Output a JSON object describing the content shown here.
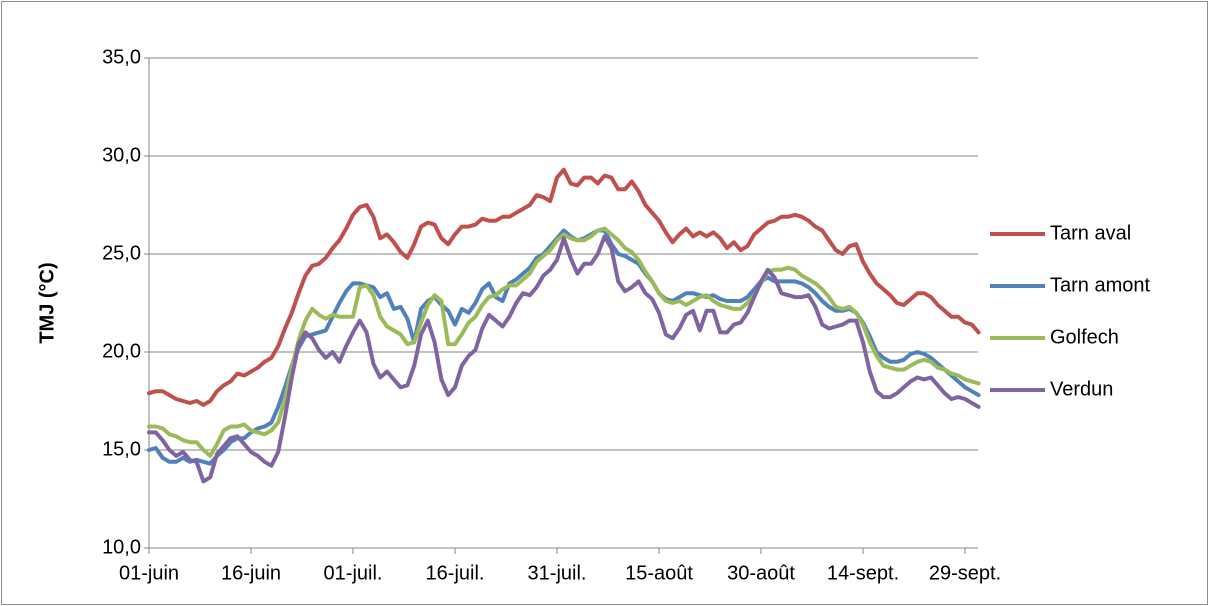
{
  "chart_data": {
    "type": "line",
    "y_label": "TMJ (°C)",
    "categories": [
      "01-juin",
      null,
      null,
      null,
      null,
      null,
      null,
      null,
      null,
      null,
      null,
      null,
      null,
      null,
      null,
      "16-juin",
      null,
      null,
      null,
      null,
      null,
      null,
      null,
      null,
      null,
      null,
      null,
      null,
      null,
      null,
      "01-juil.",
      null,
      null,
      null,
      null,
      null,
      null,
      null,
      null,
      null,
      null,
      null,
      null,
      null,
      null,
      "16-juil.",
      null,
      null,
      null,
      null,
      null,
      null,
      null,
      null,
      null,
      null,
      null,
      null,
      null,
      null,
      "31-juil.",
      null,
      null,
      null,
      null,
      null,
      null,
      null,
      null,
      null,
      null,
      null,
      null,
      null,
      null,
      "15-août",
      null,
      null,
      null,
      null,
      null,
      null,
      null,
      null,
      null,
      null,
      null,
      null,
      null,
      null,
      "30-août",
      null,
      null,
      null,
      null,
      null,
      null,
      null,
      null,
      null,
      null,
      null,
      null,
      null,
      null,
      "14-sept.",
      null,
      null,
      null,
      null,
      null,
      null,
      null,
      null,
      null,
      null,
      null,
      null,
      null,
      null,
      "29-sept.",
      null,
      null
    ],
    "series": [
      {
        "name": "Tarn aval",
        "color": "#c0504d",
        "values": [
          17.9,
          18.0,
          18.0,
          17.8,
          17.6,
          17.5,
          17.4,
          17.5,
          17.3,
          17.5,
          18.0,
          18.3,
          18.5,
          18.9,
          18.8,
          19.0,
          19.2,
          19.5,
          19.7,
          20.3,
          21.2,
          22.0,
          23.0,
          23.9,
          24.4,
          24.5,
          24.8,
          25.3,
          25.7,
          26.3,
          27.0,
          27.4,
          27.5,
          26.9,
          25.8,
          26.0,
          25.6,
          25.1,
          24.8,
          25.5,
          26.4,
          26.6,
          26.5,
          25.8,
          25.5,
          26.0,
          26.4,
          26.4,
          26.5,
          26.8,
          26.7,
          26.7,
          26.9,
          26.9,
          27.1,
          27.3,
          27.5,
          28.0,
          27.9,
          27.7,
          28.9,
          29.3,
          28.6,
          28.5,
          28.9,
          28.9,
          28.6,
          29.0,
          28.9,
          28.3,
          28.3,
          28.7,
          28.2,
          27.5,
          27.1,
          26.7,
          26.1,
          25.6,
          26.0,
          26.3,
          25.9,
          26.1,
          25.9,
          26.1,
          25.8,
          25.3,
          25.6,
          25.2,
          25.4,
          26.0,
          26.3,
          26.6,
          26.7,
          26.9,
          26.9,
          27.0,
          26.9,
          26.7,
          26.4,
          26.2,
          25.7,
          25.2,
          25.0,
          25.4,
          25.5,
          24.6,
          24.0,
          23.5,
          23.2,
          22.9,
          22.5,
          22.4,
          22.7,
          23.0,
          23.0,
          22.8,
          22.4,
          22.1,
          21.8,
          21.8,
          21.5,
          21.4,
          21.0
        ]
      },
      {
        "name": "Tarn amont",
        "color": "#4f81bd",
        "values": [
          15.0,
          15.1,
          14.6,
          14.4,
          14.4,
          14.6,
          14.4,
          14.5,
          14.4,
          14.3,
          14.7,
          15.0,
          15.4,
          15.6,
          15.6,
          15.9,
          16.1,
          16.2,
          16.4,
          17.2,
          18.2,
          19.3,
          20.2,
          20.8,
          20.9,
          21.0,
          21.1,
          21.8,
          22.5,
          23.1,
          23.5,
          23.5,
          23.4,
          23.3,
          22.8,
          23.0,
          22.2,
          22.3,
          21.7,
          20.5,
          22.2,
          22.6,
          22.8,
          22.4,
          22.1,
          21.4,
          22.2,
          22.0,
          22.5,
          23.2,
          23.5,
          22.8,
          22.6,
          23.5,
          23.7,
          24.0,
          24.3,
          24.8,
          25.0,
          25.4,
          25.8,
          26.2,
          25.9,
          25.7,
          25.8,
          26.0,
          26.2,
          26.2,
          25.5,
          25.0,
          24.9,
          24.7,
          24.5,
          24.0,
          23.6,
          23.0,
          22.7,
          22.6,
          22.8,
          23.0,
          23.0,
          22.9,
          22.8,
          22.9,
          22.7,
          22.6,
          22.6,
          22.6,
          22.8,
          23.2,
          23.6,
          23.8,
          23.6,
          23.6,
          23.6,
          23.6,
          23.5,
          23.3,
          23.0,
          22.6,
          22.3,
          22.1,
          22.1,
          22.2,
          22.0,
          21.5,
          20.8,
          20.0,
          19.7,
          19.5,
          19.5,
          19.6,
          19.9,
          20.0,
          19.9,
          19.7,
          19.4,
          19.1,
          18.8,
          18.5,
          18.2,
          18.0,
          17.8
        ]
      },
      {
        "name": "Golfech",
        "color": "#9bbb59",
        "values": [
          16.2,
          16.2,
          16.1,
          15.8,
          15.7,
          15.5,
          15.4,
          15.4,
          15.0,
          14.7,
          15.3,
          16.0,
          16.2,
          16.2,
          16.3,
          16.0,
          15.9,
          15.8,
          16.0,
          16.4,
          17.6,
          19.2,
          20.6,
          21.6,
          22.2,
          21.9,
          21.7,
          21.9,
          21.8,
          21.8,
          21.8,
          23.3,
          23.4,
          22.9,
          21.8,
          21.3,
          21.1,
          20.9,
          20.4,
          20.5,
          21.5,
          22.4,
          22.9,
          22.6,
          20.4,
          20.4,
          20.9,
          21.5,
          21.8,
          22.4,
          22.8,
          22.9,
          23.2,
          23.4,
          23.4,
          23.7,
          24.0,
          24.6,
          24.9,
          25.2,
          25.7,
          26.0,
          25.8,
          25.7,
          25.7,
          25.9,
          26.2,
          26.3,
          26.0,
          25.7,
          25.3,
          25.1,
          24.7,
          24.1,
          23.6,
          23.0,
          22.6,
          22.5,
          22.6,
          22.4,
          22.6,
          22.8,
          22.9,
          22.6,
          22.4,
          22.3,
          22.2,
          22.2,
          22.5,
          22.9,
          23.5,
          24.1,
          24.2,
          24.2,
          24.3,
          24.2,
          23.9,
          23.7,
          23.5,
          23.2,
          22.8,
          22.3,
          22.2,
          22.3,
          22.0,
          21.4,
          20.5,
          19.8,
          19.3,
          19.2,
          19.1,
          19.1,
          19.3,
          19.5,
          19.6,
          19.5,
          19.2,
          19.1,
          18.9,
          18.8,
          18.6,
          18.5,
          18.4
        ]
      },
      {
        "name": "Verdun",
        "color": "#8064a2",
        "values": [
          15.9,
          15.9,
          15.5,
          15.0,
          14.7,
          14.9,
          14.5,
          14.4,
          13.4,
          13.6,
          14.8,
          15.2,
          15.6,
          15.7,
          15.3,
          14.9,
          14.7,
          14.4,
          14.2,
          14.9,
          16.7,
          18.7,
          20.4,
          21.0,
          20.7,
          20.1,
          19.7,
          20.0,
          19.5,
          20.3,
          21.0,
          21.6,
          21.0,
          19.4,
          18.7,
          19.0,
          18.6,
          18.2,
          18.3,
          19.3,
          20.9,
          21.6,
          20.5,
          18.6,
          17.8,
          18.2,
          19.3,
          19.8,
          20.1,
          21.2,
          21.9,
          21.6,
          21.3,
          21.8,
          22.5,
          23.0,
          22.9,
          23.3,
          23.9,
          24.2,
          24.7,
          25.8,
          24.8,
          24.0,
          24.5,
          24.5,
          25.0,
          25.9,
          25.3,
          23.6,
          23.1,
          23.3,
          23.6,
          23.0,
          22.7,
          22.0,
          20.9,
          20.7,
          21.2,
          21.9,
          22.1,
          21.1,
          22.1,
          22.1,
          21.0,
          21.0,
          21.4,
          21.5,
          22.0,
          22.8,
          23.6,
          24.2,
          23.8,
          23.0,
          22.9,
          22.8,
          22.8,
          22.9,
          22.3,
          21.4,
          21.2,
          21.3,
          21.4,
          21.6,
          21.6,
          20.5,
          19.0,
          18.0,
          17.7,
          17.7,
          17.9,
          18.2,
          18.5,
          18.7,
          18.6,
          18.7,
          18.3,
          17.9,
          17.6,
          17.7,
          17.6,
          17.4,
          17.2
        ]
      }
    ],
    "ylim": [
      10,
      35
    ],
    "yticks": [
      {
        "value": 10,
        "label": "10,0"
      },
      {
        "value": 15,
        "label": "15,0"
      },
      {
        "value": 20,
        "label": "20,0"
      },
      {
        "value": 25,
        "label": "25,0"
      },
      {
        "value": 30,
        "label": "30,0"
      },
      {
        "value": 35,
        "label": "35,0"
      }
    ],
    "grid": true,
    "legend": "right"
  }
}
